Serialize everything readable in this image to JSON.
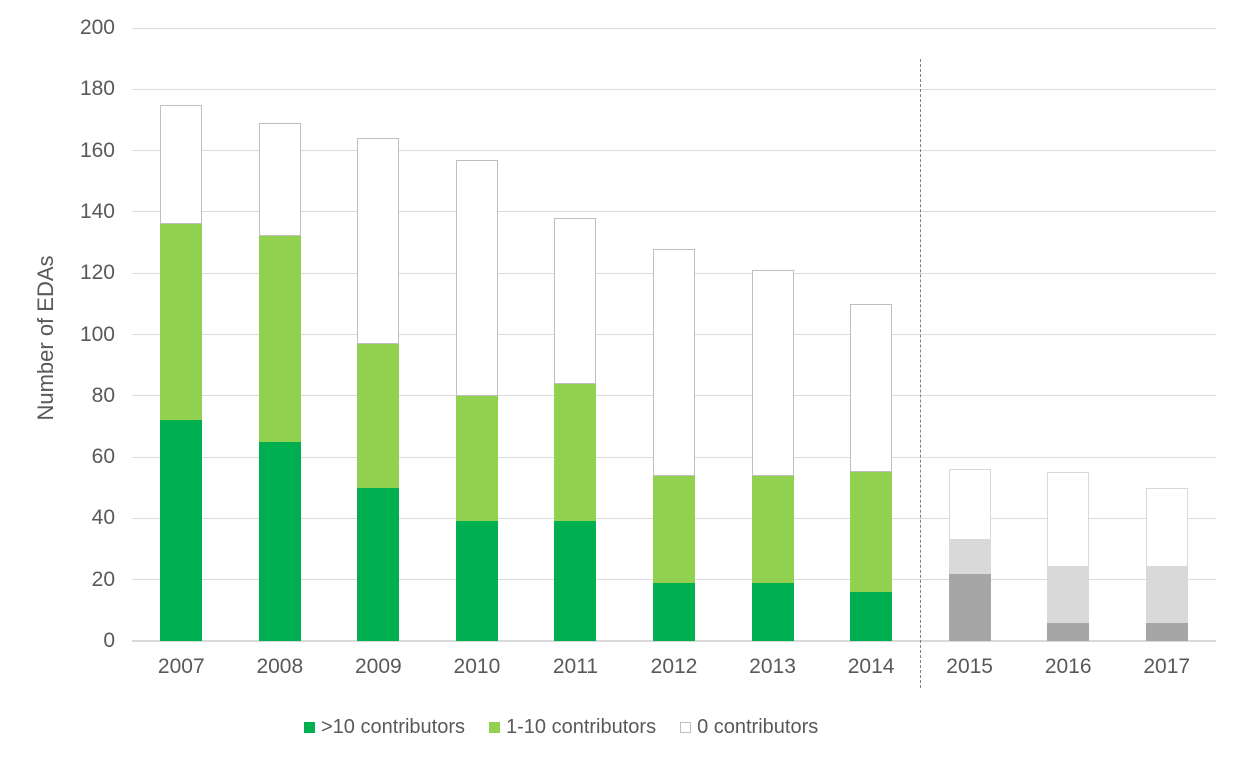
{
  "chart_data": {
    "type": "bar",
    "stacked": true,
    "title": "",
    "ylabel": "Number of EDAs",
    "xlabel": "",
    "ylim": [
      0,
      200
    ],
    "ytick_step": 20,
    "grid": true,
    "legend_position": "bottom",
    "categories": [
      "2007",
      "2008",
      "2009",
      "2010",
      "2011",
      "2012",
      "2013",
      "2014",
      "2015",
      "2016",
      "2017"
    ],
    "series": [
      {
        "name": ">10 contributors",
        "color": "#00B050",
        "gray_color": "#A6A6A6",
        "values": [
          72,
          65,
          50,
          39,
          39,
          19,
          19,
          16,
          22,
          6,
          6
        ]
      },
      {
        "name": "1-10 contributors",
        "color": "#92D050",
        "gray_color": "#D9D9D9",
        "values": [
          64,
          67,
          47,
          41,
          45,
          35,
          35,
          39,
          11,
          18,
          18
        ]
      },
      {
        "name": "0 contributors",
        "color": "#FFFFFF",
        "border_color": "#BFBFBF",
        "gray_border_color": "#D9D9D9",
        "values": [
          39,
          37,
          67,
          77,
          54,
          74,
          67,
          55,
          23,
          31,
          26
        ]
      }
    ],
    "totals": [
      175,
      169,
      164,
      157,
      138,
      128,
      121,
      110,
      56,
      55,
      50
    ],
    "gray_categories": [
      "2015",
      "2016",
      "2017"
    ],
    "separator": {
      "after_category": "2014",
      "style": "dashed",
      "color": "#7f7f7f"
    },
    "axis_text_color": "#595959",
    "gridline_color": "#DCDCDC"
  }
}
